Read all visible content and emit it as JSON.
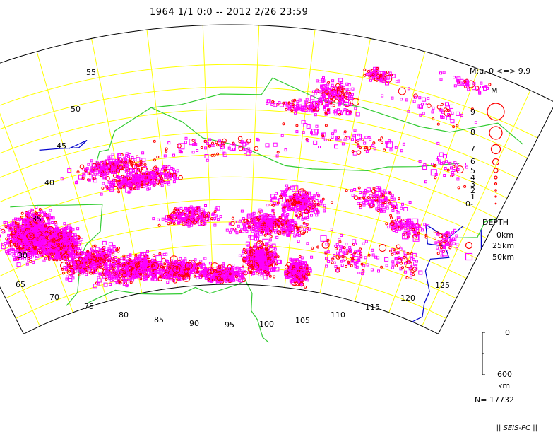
{
  "title": "1964 1/1 0:0 -- 2012 2/26 23:59",
  "map": {
    "lat_labels": [
      "55",
      "50",
      "45",
      "40",
      "35",
      "30"
    ],
    "lon_labels": [
      "65",
      "70",
      "75",
      "80",
      "85",
      "90",
      "95",
      "100",
      "105",
      "110",
      "115",
      "120",
      "125"
    ],
    "colors": {
      "graticule": "#ffff00",
      "frame": "#000000",
      "border": "#33cc33",
      "coast": "#0000cc",
      "shallow": "#ff0000",
      "deep": "#ff00ff"
    }
  },
  "legend": {
    "magnitude_header": "M:u, 0 <=> 9.9",
    "magnitude_title": "M",
    "magnitudes": [
      "9",
      "8",
      "7",
      "6",
      "5",
      "4",
      "3",
      "2",
      "1",
      "0-"
    ],
    "depth_title": "DEPTH",
    "depth_labels": [
      "0km",
      "25km",
      "50km"
    ],
    "depth_scale_top": "0",
    "depth_scale_bottom": "600",
    "depth_unit": "km",
    "count": "N= 17732"
  },
  "footer": "|| SEIS-PC ||"
}
